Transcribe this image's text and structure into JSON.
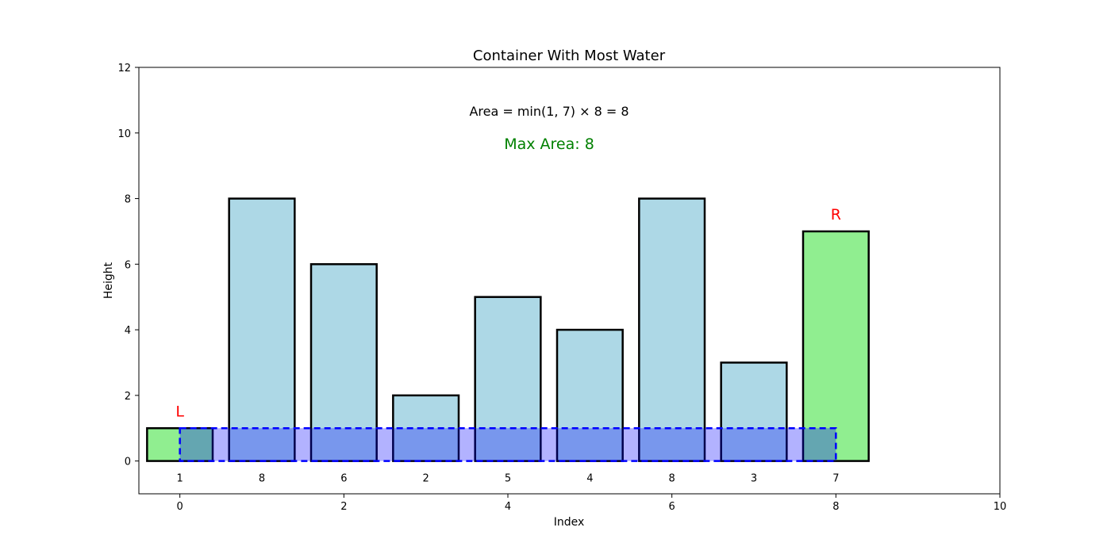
{
  "chart_data": {
    "type": "bar",
    "title": "Container With Most Water",
    "xlabel": "Index",
    "ylabel": "Height",
    "xlim": [
      -0.5,
      10
    ],
    "ylim": [
      -1,
      12
    ],
    "x_ticks": [
      0,
      2,
      4,
      6,
      8,
      10
    ],
    "y_ticks": [
      0,
      2,
      4,
      6,
      8,
      10,
      12
    ],
    "grid": false,
    "bar_width": 0.8,
    "heights": [
      1,
      8,
      6,
      2,
      5,
      4,
      8,
      3,
      7
    ],
    "value_labels": [
      "1",
      "8",
      "6",
      "2",
      "5",
      "4",
      "8",
      "3",
      "7"
    ],
    "highlighted": [
      0,
      8
    ],
    "pointers": [
      {
        "label": "L",
        "index": 0
      },
      {
        "label": "R",
        "index": 8
      }
    ],
    "water": {
      "x_from": 0,
      "x_to": 8,
      "level": 1
    },
    "area_text": "Area = min(1, 7) × 8 = 8",
    "max_area_text": "Max Area: 8",
    "colors": {
      "bar": "#add8e6",
      "highlight": "#90ee90",
      "water_fill": "#0000ff",
      "water_edge": "#0000ff",
      "pointer": "#ff0000",
      "max_area": "#008000"
    }
  }
}
